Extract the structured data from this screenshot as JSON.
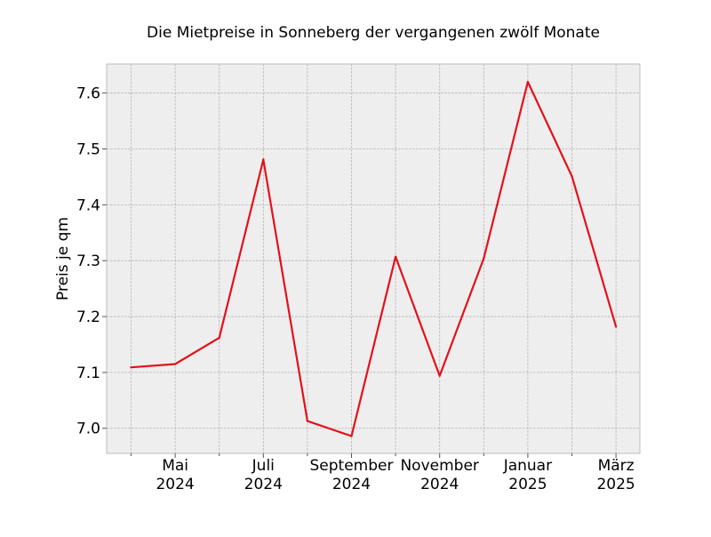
{
  "chart_data": {
    "type": "line",
    "title": "Die Mietpreise in Sonneberg der vergangenen zwölf Monate",
    "xlabel": "",
    "ylabel": "Preis je qm",
    "x": [
      "2024-04",
      "2024-05",
      "2024-06",
      "2024-07",
      "2024-08",
      "2024-09",
      "2024-10",
      "2024-11",
      "2024-12",
      "2025-01",
      "2025-02",
      "2025-03"
    ],
    "series": [
      {
        "values": [
          7.109,
          7.115,
          7.162,
          7.481,
          7.013,
          6.986,
          7.307,
          7.094,
          7.304,
          7.62,
          7.451,
          7.182
        ]
      }
    ],
    "ylim": [
      6.955,
      7.652
    ],
    "yticks": [
      7.0,
      7.1,
      7.2,
      7.3,
      7.4,
      7.5,
      7.6
    ],
    "ytick_labels": [
      "7.0",
      "7.1",
      "7.2",
      "7.3",
      "7.4",
      "7.5",
      "7.6"
    ],
    "xticks_major": [
      {
        "x": "2024-05",
        "label_month": "Mai",
        "label_year": "2024"
      },
      {
        "x": "2024-07",
        "label_month": "Juli",
        "label_year": "2024"
      },
      {
        "x": "2024-09",
        "label_month": "September",
        "label_year": "2024"
      },
      {
        "x": "2024-11",
        "label_month": "November",
        "label_year": "2024"
      },
      {
        "x": "2025-01",
        "label_month": "Januar",
        "label_year": "2025"
      },
      {
        "x": "2025-03",
        "label_month": "März",
        "label_year": "2025"
      }
    ],
    "xticks_minor": [
      "2024-04",
      "2024-06",
      "2024-08",
      "2024-10",
      "2024-12",
      "2025-02"
    ],
    "grid": true,
    "line_color": "#e3111b",
    "plot_background": "#eeeeee",
    "grid_color": "#b2b2b2"
  }
}
